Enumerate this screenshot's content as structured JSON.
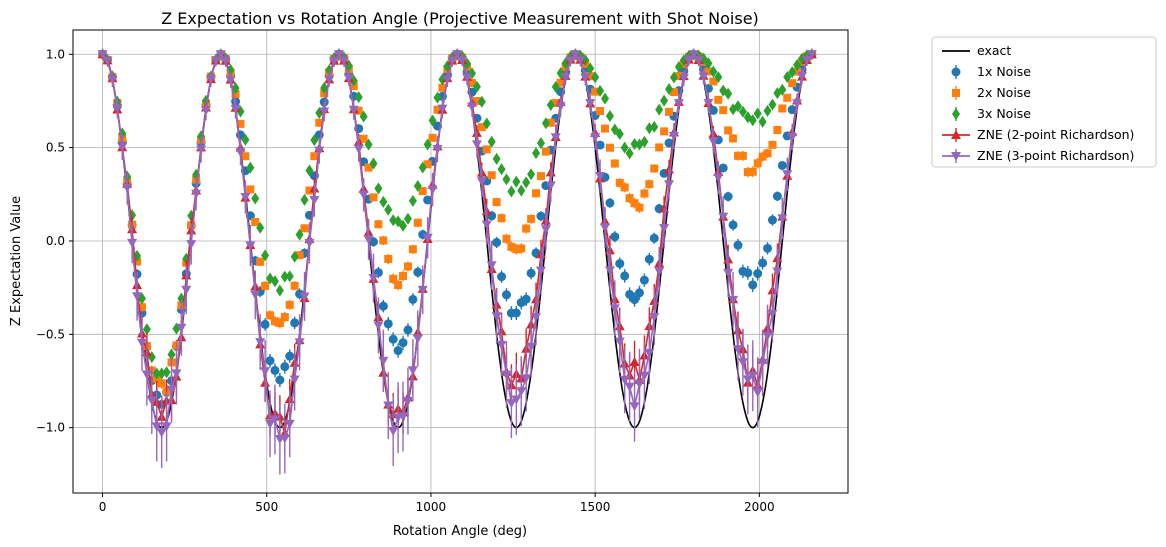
{
  "chart_data": {
    "type": "line",
    "title": "Z Expectation vs Rotation Angle (Projective Measurement with Shot Noise)",
    "xlabel": "Rotation Angle (deg)",
    "ylabel": "Z Expectation Value",
    "xlim": [
      -90,
      2270
    ],
    "ylim": [
      -1.35,
      1.13
    ],
    "xticks": [
      0,
      500,
      1000,
      1500,
      2000
    ],
    "xtick_labels": [
      "0",
      "500",
      "1000",
      "1500",
      "2000"
    ],
    "yticks": [
      -1.0,
      -0.5,
      0.0,
      0.5,
      1.0
    ],
    "ytick_labels": [
      "−1.0",
      "−0.5",
      "0.0",
      "0.5",
      "1.0"
    ],
    "grid": true,
    "legend_position": "outside-right",
    "x_range": {
      "start": 0,
      "end": 2160,
      "step": 15
    },
    "exact_model": "cos(x deg)",
    "series": [
      {
        "name": "exact",
        "style": "line",
        "color": "#000000",
        "marker": "none",
        "description": "cos(angle)"
      },
      {
        "name": "1x Noise",
        "style": "errorbar",
        "color": "#1f77b4",
        "marker": "circle",
        "damping_per_cycle": [
          0.85,
          0.72,
          0.56,
          0.38,
          0.3,
          0.21
        ],
        "error": 0.02
      },
      {
        "name": "2x Noise",
        "style": "errorbar",
        "color": "#ff7f0e",
        "marker": "square",
        "damping_per_cycle": [
          0.8,
          0.46,
          0.2,
          0.02,
          -0.2,
          -0.38
        ],
        "error": 0.015
      },
      {
        "name": "3x Noise",
        "style": "errorbar",
        "color": "#2ca02c",
        "marker": "diamond",
        "damping_per_cycle": [
          0.73,
          0.25,
          -0.07,
          -0.28,
          -0.5,
          -0.64
        ],
        "error": 0.012
      },
      {
        "name": "ZNE (2-point Richardson)",
        "style": "errorbar-line",
        "color": "#d62728",
        "marker": "triangle-up",
        "damping_per_cycle": [
          0.95,
          1.0,
          0.95,
          0.75,
          0.72,
          0.74
        ],
        "error": 0.06
      },
      {
        "name": "ZNE (3-point Richardson)",
        "style": "errorbar-line",
        "color": "#9467bd",
        "marker": "triangle-down",
        "damping_per_cycle": [
          1.0,
          1.05,
          0.98,
          0.85,
          0.83,
          0.8
        ],
        "error": 0.1
      }
    ],
    "legend": [
      "exact",
      "1x Noise",
      "2x Noise",
      "3x Noise",
      "ZNE (2-point Richardson)",
      "ZNE (3-point Richardson)"
    ]
  }
}
